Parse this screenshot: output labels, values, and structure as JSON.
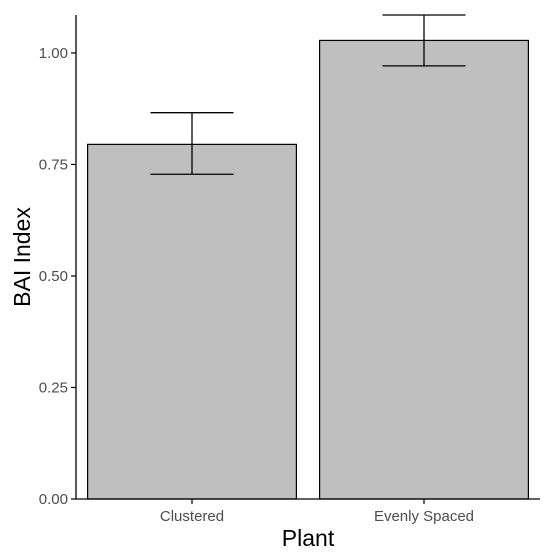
{
  "chart_data": {
    "type": "bar",
    "title": "",
    "xlabel": "Plant",
    "ylabel": "BAI Index",
    "categories": [
      "Clustered",
      "Evenly Spaced"
    ],
    "values": [
      0.795,
      1.028
    ],
    "error_bars": {
      "lower": [
        0.728,
        0.971
      ],
      "upper": [
        0.866,
        1.085
      ]
    },
    "ylim": [
      0,
      1.085
    ],
    "yticks": [
      0.0,
      0.25,
      0.5,
      0.75,
      1.0
    ],
    "ytick_labels": [
      "0.00",
      "0.25",
      "0.50",
      "0.75",
      "1.00"
    ],
    "grid": false,
    "legend": "none",
    "colors": {
      "bar_fill": "#bebfbe",
      "bar_stroke": "#000000",
      "axis": "#000000",
      "tick_text": "#4d4d4d",
      "title_text": "#000000"
    }
  }
}
